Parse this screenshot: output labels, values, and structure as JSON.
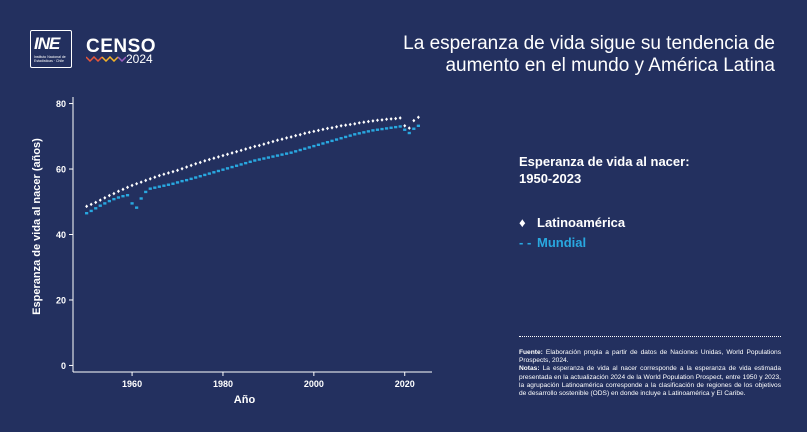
{
  "header": {
    "logo_text": "INE",
    "logo_subtext": "Instituto Nacional de Estadísticas · Chile",
    "censo_label": "CENSO",
    "censo_year": "2024",
    "headline": "La esperanza de vida sigue su tendencia de aumento en el mundo y América Latina"
  },
  "colors": {
    "background": "#23305f",
    "latam": "#ffffff",
    "mundial": "#29a8e0"
  },
  "side_title": "Esperanza de vida al nacer: 1950-2023",
  "legend": {
    "latam_marker": "♦",
    "latam": "Latinoamérica",
    "mundial_marker": "- -",
    "mundial": "Mundial"
  },
  "notes": {
    "fuente_label": "Fuente:",
    "fuente": "Elaboración propia a partir de datos de Naciones Unidas, World Populations Prospects, 2024.",
    "notas_label": "Notas:",
    "notas": "La esperanza de vida al nacer corresponde a la esperanza de vida estimada presentada en la actualización 2024 de la World Population Prospect, entre 1950 y 2023, la agrupación Latinoamérica corresponde a la clasificación de regiones de los objetivos de desarrollo sostenible (ODS) en donde incluye a Latinoamérica y El Caribe."
  },
  "chart_data": {
    "type": "scatter",
    "title": "",
    "xlabel": "Año",
    "ylabel": "Esperanza de vida al nacer (años)",
    "xlim": [
      1947,
      2026
    ],
    "ylim": [
      -2,
      82
    ],
    "xticks": [
      1960,
      1980,
      2000,
      2020
    ],
    "yticks": [
      0,
      20,
      40,
      60,
      80
    ],
    "grid": false,
    "legend_position": "right",
    "x": [
      1950,
      1951,
      1952,
      1953,
      1954,
      1955,
      1956,
      1957,
      1958,
      1959,
      1960,
      1961,
      1962,
      1963,
      1964,
      1965,
      1966,
      1967,
      1968,
      1969,
      1970,
      1971,
      1972,
      1973,
      1974,
      1975,
      1976,
      1977,
      1978,
      1979,
      1980,
      1981,
      1982,
      1983,
      1984,
      1985,
      1986,
      1987,
      1988,
      1989,
      1990,
      1991,
      1992,
      1993,
      1994,
      1995,
      1996,
      1997,
      1998,
      1999,
      2000,
      2001,
      2002,
      2003,
      2004,
      2005,
      2006,
      2007,
      2008,
      2009,
      2010,
      2011,
      2012,
      2013,
      2014,
      2015,
      2016,
      2017,
      2018,
      2019,
      2020,
      2021,
      2022,
      2023
    ],
    "series": [
      {
        "name": "Latinoamérica",
        "values": [
          48.6,
          49.2,
          49.8,
          50.5,
          51.2,
          51.9,
          52.5,
          53.2,
          53.8,
          54.4,
          55.0,
          55.5,
          56.0,
          56.5,
          57.0,
          57.5,
          58.0,
          58.4,
          58.8,
          59.2,
          59.6,
          60.1,
          60.6,
          61.1,
          61.6,
          62.0,
          62.5,
          62.9,
          63.3,
          63.7,
          64.1,
          64.5,
          64.9,
          65.3,
          65.7,
          66.1,
          66.5,
          66.9,
          67.2,
          67.6,
          68.0,
          68.4,
          68.8,
          69.1,
          69.5,
          69.8,
          70.2,
          70.5,
          70.9,
          71.2,
          71.5,
          71.8,
          72.1,
          72.4,
          72.6,
          72.9,
          73.2,
          73.4,
          73.6,
          73.8,
          74.1,
          74.3,
          74.5,
          74.7,
          74.9,
          75.0,
          75.2,
          75.3,
          75.4,
          75.6,
          73.2,
          72.5,
          74.8,
          75.8
        ]
      },
      {
        "name": "Mundial",
        "values": [
          46.5,
          47.2,
          48.0,
          48.8,
          49.5,
          50.2,
          50.8,
          51.3,
          51.7,
          52.0,
          49.5,
          48.2,
          51.0,
          53.0,
          54.0,
          54.3,
          54.6,
          54.9,
          55.2,
          55.5,
          55.9,
          56.3,
          56.6,
          57.0,
          57.4,
          57.8,
          58.2,
          58.6,
          59.0,
          59.4,
          59.8,
          60.2,
          60.6,
          61.0,
          61.4,
          61.8,
          62.2,
          62.6,
          62.9,
          63.2,
          63.5,
          63.8,
          64.1,
          64.4,
          64.7,
          65.0,
          65.4,
          65.8,
          66.2,
          66.6,
          67.0,
          67.4,
          67.8,
          68.2,
          68.6,
          69.0,
          69.4,
          69.8,
          70.2,
          70.6,
          70.9,
          71.2,
          71.5,
          71.8,
          72.0,
          72.2,
          72.4,
          72.6,
          72.8,
          73.0,
          72.0,
          71.0,
          72.3,
          73.2
        ]
      }
    ]
  }
}
